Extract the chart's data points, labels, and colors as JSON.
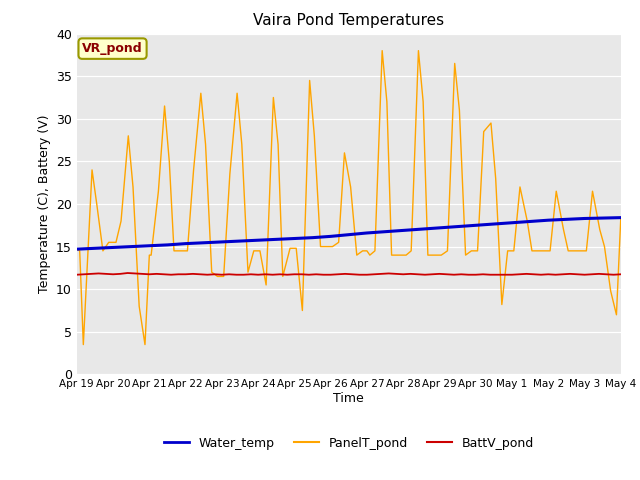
{
  "title": "Vaira Pond Temperatures",
  "ylabel": "Temperature (C), Battery (V)",
  "xlabel": "Time",
  "ylim": [
    0,
    40
  ],
  "x_tick_labels": [
    "Apr 19",
    "Apr 20",
    "Apr 21",
    "Apr 22",
    "Apr 23",
    "Apr 24",
    "Apr 25",
    "Apr 26",
    "Apr 27",
    "Apr 28",
    "Apr 29",
    "Apr 30",
    "May 1",
    "May 2",
    "May 3",
    "May 4"
  ],
  "site_label": "VR_pond",
  "legend_entries": [
    "Water_temp",
    "PanelT_pond",
    "BattV_pond"
  ],
  "colors": {
    "water": "#0000cc",
    "panel": "#ffa500",
    "batt": "#cc0000",
    "plot_bg": "#e8e8e8",
    "fig_bg": "#ffffff",
    "grid": "#ffffff",
    "site_bg": "#ffffcc",
    "site_border": "#999900"
  },
  "water_temp": {
    "x": [
      0,
      0.5,
      1,
      1.5,
      2,
      2.5,
      3,
      3.5,
      4,
      4.5,
      5,
      5.5,
      6,
      6.5,
      7,
      7.5,
      8,
      8.5,
      9,
      9.5,
      10,
      10.5,
      11,
      11.5,
      12,
      12.5,
      13,
      13.5,
      14,
      14.5,
      15
    ],
    "y": [
      14.7,
      14.8,
      14.9,
      15.0,
      15.1,
      15.2,
      15.35,
      15.45,
      15.55,
      15.65,
      15.75,
      15.85,
      15.95,
      16.05,
      16.2,
      16.4,
      16.6,
      16.75,
      16.9,
      17.05,
      17.2,
      17.35,
      17.5,
      17.65,
      17.8,
      17.95,
      18.1,
      18.2,
      18.3,
      18.35,
      18.4
    ]
  },
  "batt": {
    "x": [
      0,
      0.2,
      0.4,
      0.6,
      0.8,
      1.0,
      1.2,
      1.4,
      1.6,
      1.8,
      2.0,
      2.2,
      2.4,
      2.6,
      2.8,
      3.0,
      3.2,
      3.4,
      3.6,
      3.8,
      4.0,
      4.2,
      4.4,
      4.6,
      4.8,
      5.0,
      5.2,
      5.4,
      5.6,
      5.8,
      6.0,
      6.2,
      6.4,
      6.6,
      6.8,
      7.0,
      7.2,
      7.4,
      7.6,
      7.8,
      8.0,
      8.2,
      8.4,
      8.6,
      8.8,
      9.0,
      9.2,
      9.4,
      9.6,
      9.8,
      10.0,
      10.2,
      10.4,
      10.6,
      10.8,
      11.0,
      11.2,
      11.4,
      11.6,
      11.8,
      12.0,
      12.2,
      12.4,
      12.6,
      12.8,
      13.0,
      13.2,
      13.4,
      13.6,
      13.8,
      14.0,
      14.2,
      14.4,
      14.6,
      14.8,
      15.0
    ],
    "y": [
      11.7,
      11.75,
      11.8,
      11.85,
      11.8,
      11.75,
      11.8,
      11.9,
      11.85,
      11.8,
      11.75,
      11.8,
      11.75,
      11.7,
      11.75,
      11.75,
      11.8,
      11.75,
      11.7,
      11.75,
      11.7,
      11.75,
      11.7,
      11.7,
      11.75,
      11.7,
      11.75,
      11.7,
      11.75,
      11.7,
      11.75,
      11.75,
      11.7,
      11.75,
      11.7,
      11.7,
      11.75,
      11.8,
      11.75,
      11.7,
      11.7,
      11.75,
      11.8,
      11.85,
      11.8,
      11.75,
      11.8,
      11.75,
      11.7,
      11.75,
      11.8,
      11.75,
      11.7,
      11.75,
      11.7,
      11.7,
      11.75,
      11.7,
      11.7,
      11.7,
      11.7,
      11.75,
      11.8,
      11.75,
      11.7,
      11.75,
      11.7,
      11.75,
      11.8,
      11.75,
      11.7,
      11.75,
      11.8,
      11.75,
      11.7,
      11.75
    ]
  },
  "panel": {
    "x": [
      0.0,
      0.08,
      0.18,
      0.42,
      0.55,
      0.72,
      0.88,
      1.0,
      1.08,
      1.22,
      1.42,
      1.55,
      1.72,
      1.88,
      2.0,
      2.05,
      2.25,
      2.42,
      2.55,
      2.68,
      2.88,
      3.0,
      3.05,
      3.22,
      3.42,
      3.55,
      3.72,
      3.88,
      4.0,
      4.05,
      4.22,
      4.42,
      4.55,
      4.72,
      4.88,
      5.0,
      5.05,
      5.22,
      5.42,
      5.55,
      5.68,
      5.88,
      6.0,
      6.05,
      6.22,
      6.42,
      6.55,
      6.72,
      6.88,
      7.0,
      7.05,
      7.22,
      7.38,
      7.55,
      7.72,
      7.88,
      8.0,
      8.08,
      8.22,
      8.42,
      8.55,
      8.68,
      8.88,
      9.0,
      9.08,
      9.22,
      9.42,
      9.55,
      9.68,
      9.88,
      10.0,
      10.05,
      10.22,
      10.42,
      10.55,
      10.72,
      10.88,
      11.0,
      11.05,
      11.22,
      11.42,
      11.55,
      11.72,
      11.88,
      12.0,
      12.05,
      12.22,
      12.42,
      12.55,
      12.72,
      12.88,
      13.0,
      13.05,
      13.22,
      13.42,
      13.55,
      13.72,
      13.88,
      14.0,
      14.05,
      14.22,
      14.42,
      14.55,
      14.72,
      14.88,
      15.0
    ],
    "y": [
      14.7,
      14.5,
      3.5,
      24.0,
      20.0,
      14.5,
      15.5,
      15.5,
      15.5,
      18.0,
      28.0,
      22.0,
      8.0,
      3.5,
      14.0,
      14.0,
      21.5,
      31.5,
      25.0,
      14.5,
      14.5,
      14.5,
      14.5,
      24.0,
      33.0,
      27.0,
      12.0,
      11.5,
      11.5,
      11.5,
      23.5,
      33.0,
      27.0,
      12.0,
      14.5,
      14.5,
      14.5,
      10.5,
      32.5,
      27.0,
      11.5,
      14.8,
      14.8,
      14.8,
      7.5,
      34.5,
      28.0,
      15.0,
      15.0,
      15.0,
      15.0,
      15.5,
      26.0,
      22.0,
      14.0,
      14.5,
      14.5,
      14.0,
      14.5,
      38.0,
      32.0,
      14.0,
      14.0,
      14.0,
      14.0,
      14.5,
      38.0,
      32.0,
      14.0,
      14.0,
      14.0,
      14.0,
      14.5,
      36.5,
      31.0,
      14.0,
      14.5,
      14.5,
      14.5,
      28.5,
      29.5,
      23.0,
      8.2,
      14.5,
      14.5,
      14.5,
      22.0,
      18.0,
      14.5,
      14.5,
      14.5,
      14.5,
      14.5,
      21.5,
      17.0,
      14.5,
      14.5,
      14.5,
      14.5,
      14.5,
      21.5,
      17.0,
      15.0,
      9.8,
      7.0,
      18.4
    ]
  }
}
